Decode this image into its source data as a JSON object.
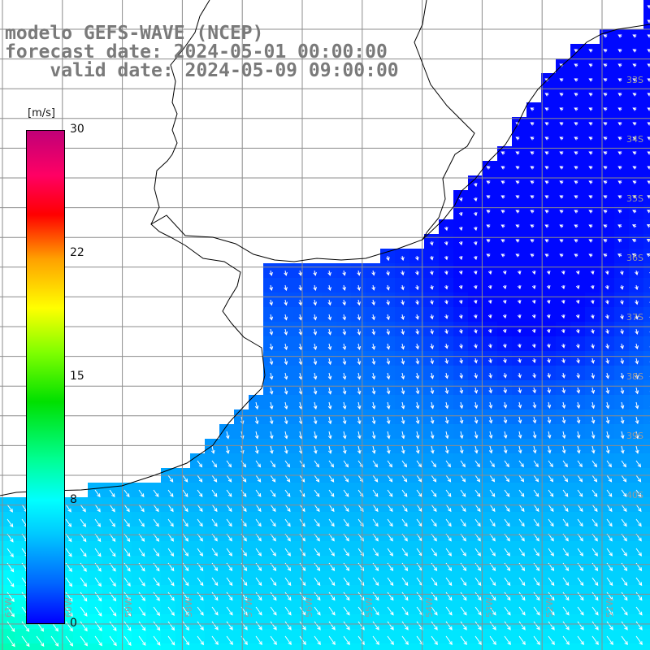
{
  "header": {
    "line1": "modelo GEFS-WAVE (NCEP)",
    "line2": "forecast date: 2024-05-01 00:00:00",
    "line3": "    valid date: 2024-05-09 09:00:00"
  },
  "colorbar": {
    "unit": "[m/s]",
    "ticks": [
      "30",
      "22",
      "15",
      "8",
      "0"
    ],
    "tick_values": [
      30,
      22,
      15,
      8,
      0
    ],
    "colors": [
      "#0000ff",
      "#0064ff",
      "#00c8ff",
      "#00ffff",
      "#00ff96",
      "#00e000",
      "#80ff00",
      "#ffff00",
      "#ffa000",
      "#ff0000",
      "#ff0064",
      "#c00078"
    ]
  },
  "map": {
    "longitude_labels": [
      "61W",
      "60W",
      "59W",
      "58W",
      "57W",
      "56W",
      "55W",
      "54W",
      "53W",
      "52W",
      "51W"
    ],
    "latitude_labels": [
      "33S",
      "34S",
      "35S",
      "36S",
      "37S",
      "38S",
      "39S",
      "40S"
    ],
    "land_color": "#ffffff",
    "grid_color": "#8c8c8c",
    "arrow_color": "#ffffff"
  }
}
